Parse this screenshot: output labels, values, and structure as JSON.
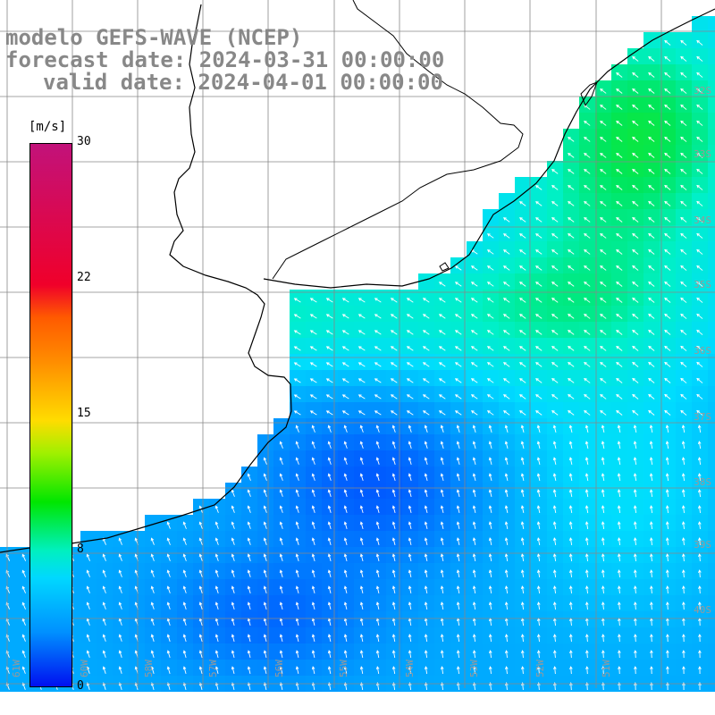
{
  "header": {
    "line1": "modelo GEFS-WAVE (NCEP)",
    "line2": "forecast date: 2024-03-31 00:00:00",
    "line3": "valid date: 2024-04-01 00:00:00"
  },
  "colorbar": {
    "unit": "[m/s]",
    "min": 0,
    "max": 30,
    "ticks": [
      "30",
      "22",
      "15",
      "8",
      "0"
    ],
    "tick_values": [
      30,
      22,
      15,
      8,
      0
    ]
  },
  "grid": {
    "lon_labels": [
      "61W",
      "60W",
      "58W",
      "57W",
      "56W",
      "55W",
      "54W",
      "53W",
      "52W",
      "51W"
    ],
    "lat_labels": [
      "32S",
      "33S",
      "34S",
      "35S",
      "36S",
      "37S",
      "38S",
      "39S",
      "40S"
    ]
  },
  "colors": {
    "grid": "#888888",
    "coast": "#000000",
    "arrow": "#ffffff"
  },
  "field": "wind speed [m/s] with wind direction arrows"
}
